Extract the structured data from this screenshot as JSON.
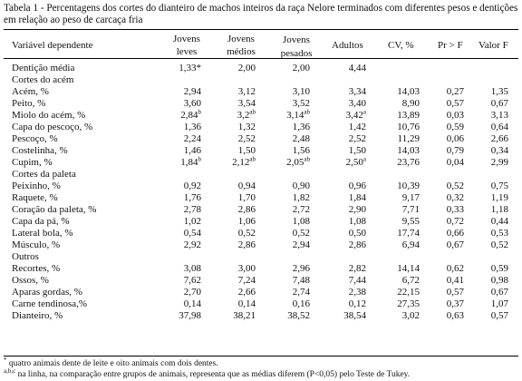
{
  "caption": "Tabela 1 - Percentagens dos cortes do dianteiro de machos inteiros da raça Nelore terminados com diferentes pesos e dentições em relação ao peso de carcaça fria",
  "headers": {
    "variable": "Variável dependente",
    "col1": [
      "Jovens",
      "leves"
    ],
    "col2": [
      "Jovens",
      "médios"
    ],
    "col3": [
      "Jovens",
      "pesados"
    ],
    "col4": "Adultos",
    "col5": "CV, %",
    "col6": "Pr > F",
    "col7": "Valor F"
  },
  "rows": [
    {
      "label": "Dentição média",
      "values": [
        "1,33*",
        "2,00",
        "2,00",
        "4,44",
        "",
        "",
        ""
      ]
    },
    {
      "label": "Cortes do acém",
      "category": true,
      "values": []
    },
    {
      "label": "Acém, %",
      "values": [
        "2,94",
        "3,12",
        "3,10",
        "3,34",
        "14,03",
        "0,27",
        "1,35"
      ]
    },
    {
      "label": "Peito, %",
      "values": [
        "3,60",
        "3,54",
        "3,52",
        "3,40",
        "8,90",
        "0,57",
        "0,67"
      ]
    },
    {
      "label": "Miolo do acém, %",
      "values": [
        "2,84",
        "3,2",
        "3,14",
        "3,42",
        "13,89",
        "0,03",
        "3,13"
      ],
      "sups": [
        "b",
        "ab",
        "ab",
        "a",
        "",
        "",
        ""
      ]
    },
    {
      "label": "Capa do pescoço, %",
      "values": [
        "1,36",
        "1,32",
        "1,36",
        "1,42",
        "10,76",
        "0,59",
        "0,64"
      ]
    },
    {
      "label": "Pescoço, %",
      "values": [
        "2,24",
        "2,52",
        "2,48",
        "2,52",
        "11,29",
        "0,06",
        "2,66"
      ]
    },
    {
      "label": "Costelinha, %",
      "values": [
        "1,46",
        "1,50",
        "1,56",
        "1,50",
        "14,03",
        "0,79",
        "0,34"
      ]
    },
    {
      "label": "Cupim, %",
      "values": [
        "1,84",
        "2,12",
        "2,05",
        "2,50",
        "23,76",
        "0,04",
        "2,99"
      ],
      "sups": [
        "b",
        "ab",
        "ab",
        "a",
        "",
        "",
        ""
      ]
    },
    {
      "label": "Cortes da paleta",
      "category": true,
      "values": []
    },
    {
      "label": "Peixinho, %",
      "values": [
        "0,92",
        "0,94",
        "0,90",
        "0,96",
        "10,39",
        "0,52",
        "0,75"
      ]
    },
    {
      "label": "Raquete, %",
      "values": [
        "1,76",
        "1,70",
        "1,82",
        "1,84",
        "9,17",
        "0,32",
        "1,19"
      ]
    },
    {
      "label": "Coração da paleta, %",
      "values": [
        "2,78",
        "2,86",
        "2,72",
        "2,90",
        "7,71",
        "0,33",
        "1,18"
      ]
    },
    {
      "label": "Capa da pá, %",
      "values": [
        "1,02",
        "1,06",
        "1,08",
        "1,08",
        "9,55",
        "0,72",
        "0,44"
      ]
    },
    {
      "label": "Lateral bola, %",
      "values": [
        "0,54",
        "0,52",
        "0,52",
        "0,50",
        "17,74",
        "0,66",
        "0,53"
      ]
    },
    {
      "label": "Músculo, %",
      "values": [
        "2,92",
        "2,86",
        "2,94",
        "2,86",
        "6,94",
        "0,67",
        "0,52"
      ]
    },
    {
      "label": "Outros",
      "category": true,
      "values": []
    },
    {
      "label": "Recortes, %",
      "values": [
        "3,08",
        "3,00",
        "2,96",
        "2,82",
        "14,14",
        "0,62",
        "0,59"
      ]
    },
    {
      "label": "Ossos, %",
      "values": [
        "7,62",
        "7,24",
        "7,48",
        "7,44",
        "6,72",
        "0,41",
        "0,98"
      ]
    },
    {
      "label": "Aparas gordas, %",
      "values": [
        "2,70",
        "2,66",
        "2,74",
        "2,38",
        "22,15",
        "0,57",
        "0,67"
      ]
    },
    {
      "label": "Carne tendinosa,%",
      "values": [
        "0,14",
        "0,14",
        "0,16",
        "0,12",
        "27,35",
        "0,37",
        "1,07"
      ]
    },
    {
      "label": "Dianteiro, %",
      "values": [
        "37,98",
        "38,21",
        "38,52",
        "38,54",
        "3,02",
        "0,63",
        "0,57"
      ]
    }
  ],
  "footnotes": {
    "note1_marker": "*",
    "note1_text": " quatro animais dente de leite e oito animais com dois dentes.",
    "note2_marker": "a,b,c",
    "note2_text": " na linha, na comparação entre grupos de animais, representa que as médias diferem (P<0,05) pelo Teste de Tukey."
  }
}
